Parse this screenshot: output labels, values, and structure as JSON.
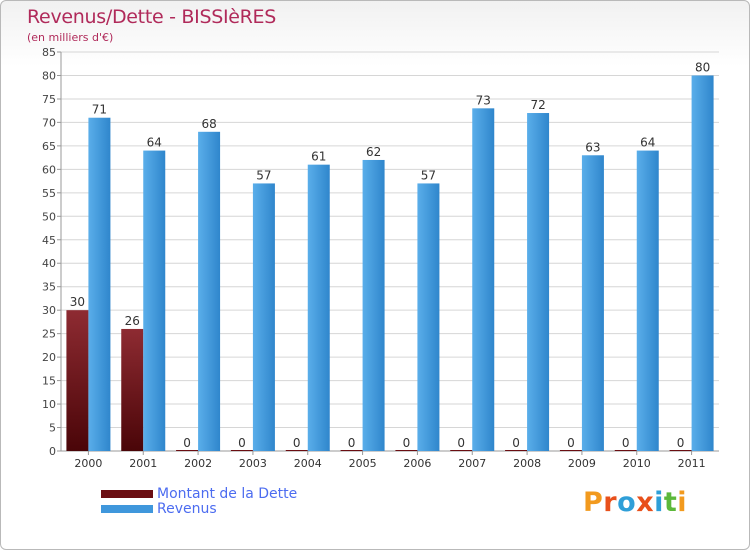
{
  "title": "Revenus/Dette - BISSIèRES",
  "subtitle": "(en milliers d'€)",
  "colors": {
    "dette": "#6b0e12",
    "revenus": "#3f97dc",
    "title": "#b02a5a",
    "legend_text": "#4c6cf0",
    "grid": "#d6d6d6"
  },
  "legend": [
    {
      "label": "Montant de la Dette",
      "color": "#6b0e12"
    },
    {
      "label": "Revenus",
      "color": "#3f97dc"
    }
  ],
  "logo": {
    "text": "Proxiti"
  },
  "chart_data": {
    "type": "bar",
    "categories": [
      "2000",
      "2001",
      "2002",
      "2003",
      "2004",
      "2005",
      "2006",
      "2007",
      "2008",
      "2009",
      "2010",
      "2011"
    ],
    "series": [
      {
        "name": "Montant de la Dette",
        "values": [
          30,
          26,
          0,
          0,
          0,
          0,
          0,
          0,
          0,
          0,
          0,
          0
        ]
      },
      {
        "name": "Revenus",
        "values": [
          71,
          64,
          68,
          57,
          61,
          62,
          57,
          73,
          72,
          63,
          64,
          80
        ]
      }
    ],
    "ylim": [
      0,
      85
    ],
    "yticks": [
      0,
      5,
      10,
      15,
      20,
      25,
      30,
      35,
      40,
      45,
      50,
      55,
      60,
      65,
      70,
      75,
      80,
      85
    ],
    "grid": true,
    "xlabel": "",
    "ylabel": "",
    "legend_position": "bottom-left"
  }
}
